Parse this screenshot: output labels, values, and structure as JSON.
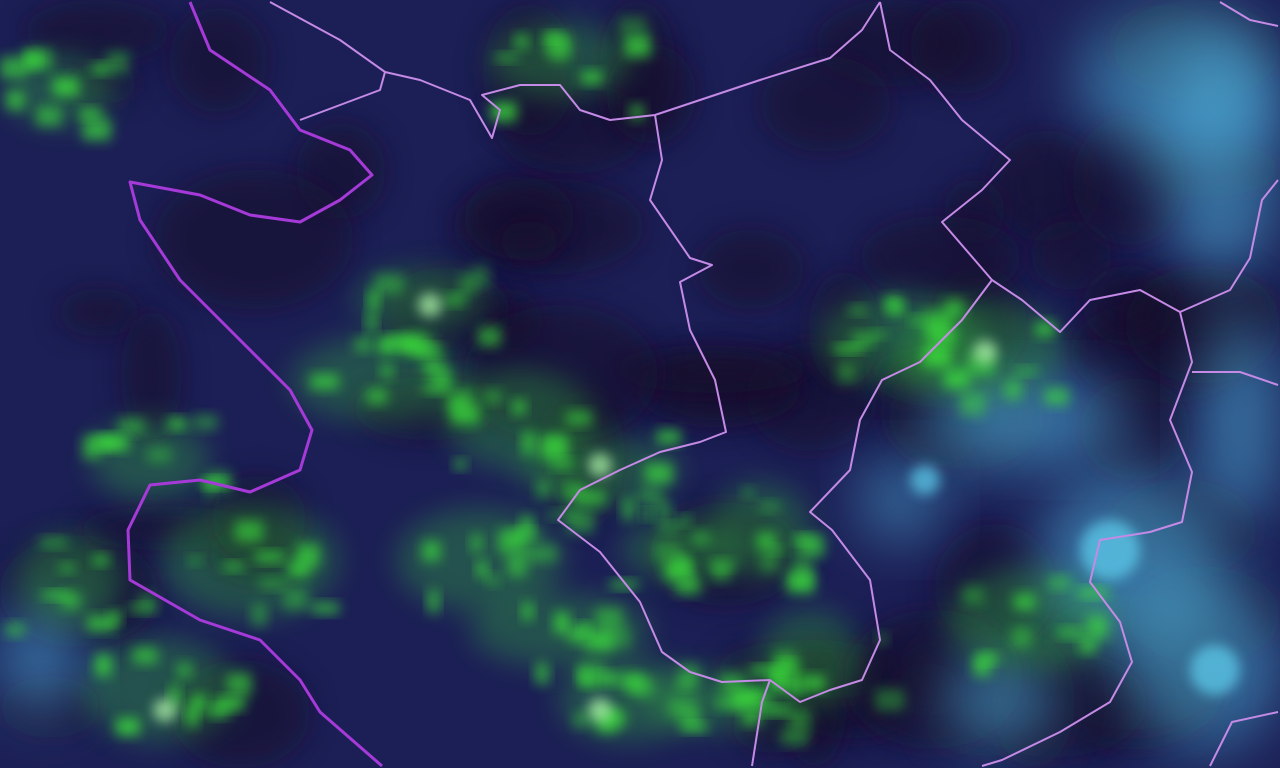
{
  "map": {
    "type": "satellite-imagery",
    "colors": {
      "background": "#1c1f55",
      "dark_patches": "#14102a",
      "vegetation_green": "#3ee83a",
      "cloud_cyan": "#4fb6e0",
      "border_primary": "#a63ad8",
      "border_secondary": "#c48ae6"
    }
  }
}
